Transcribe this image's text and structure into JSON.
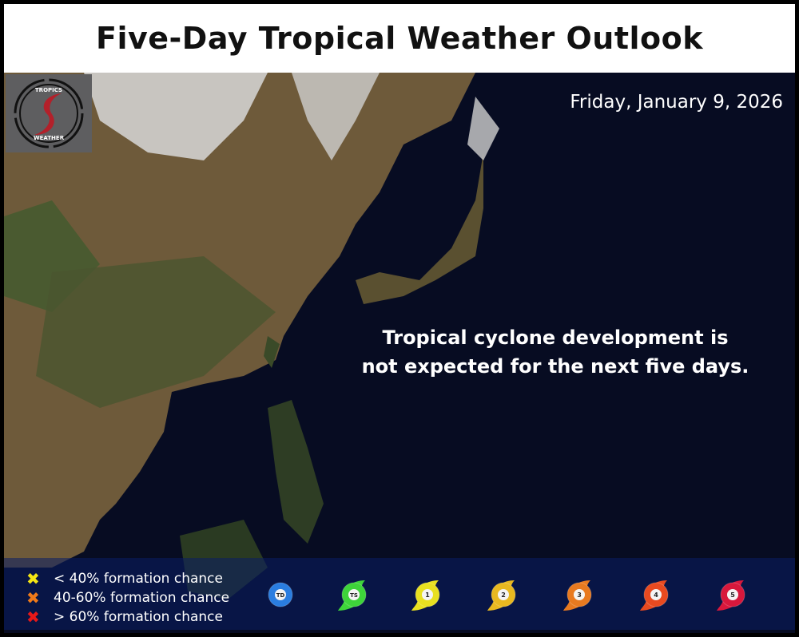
{
  "title": "Five-Day Tropical Weather Outlook",
  "date": "Friday, January 9, 2026",
  "message": {
    "line1": "Tropical cyclone development is",
    "line2": "not expected for the next five days."
  },
  "logo": {
    "text_top": "Tropics",
    "text_bottom": "Weather"
  },
  "legend": {
    "formation": [
      {
        "label": "< 40% formation chance",
        "color": "#f5e614"
      },
      {
        "label": "40-60% formation chance",
        "color": "#f07a1a"
      },
      {
        "label": "> 60% formation chance",
        "color": "#e81818"
      }
    ],
    "storms": [
      {
        "label": "TD",
        "color": "#2a7de0"
      },
      {
        "label": "TS",
        "color": "#3ed43a"
      },
      {
        "label": "1",
        "color": "#e8e020"
      },
      {
        "label": "2",
        "color": "#e8b820"
      },
      {
        "label": "3",
        "color": "#e87a20"
      },
      {
        "label": "4",
        "color": "#e84a20"
      },
      {
        "label": "5",
        "color": "#d8183c"
      }
    ]
  }
}
